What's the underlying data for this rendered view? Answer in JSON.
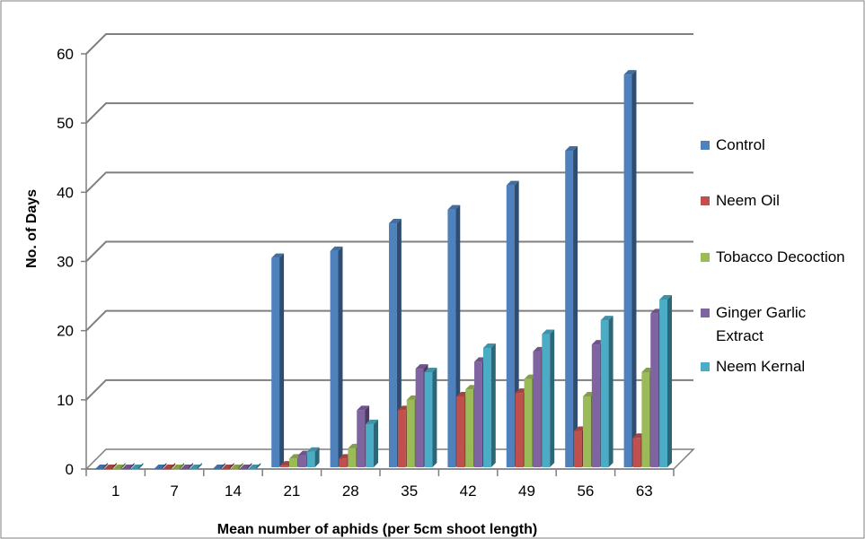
{
  "chart_data": {
    "type": "bar",
    "title": "",
    "xlabel": "Mean number of aphids (per 5cm shoot length)",
    "ylabel": "No. of Days",
    "ylim": [
      0,
      60
    ],
    "yticks": [
      0,
      10,
      20,
      30,
      40,
      50,
      60
    ],
    "grid": true,
    "three_d": true,
    "legend_position": "right",
    "categories": [
      "1",
      "7",
      "14",
      "21",
      "28",
      "35",
      "42",
      "49",
      "56",
      "63"
    ],
    "series": [
      {
        "name": "Control",
        "color": "#4F81BD",
        "values": [
          0,
          0,
          0,
          30.5,
          31.5,
          35.5,
          37.5,
          41,
          46,
          57
        ]
      },
      {
        "name": "Neem Oil",
        "color": "#C0504D",
        "values": [
          0,
          0,
          0,
          0.5,
          1.5,
          8.5,
          10.5,
          11,
          5.5,
          4.5
        ]
      },
      {
        "name": "Tobacco Decoction",
        "color": "#9BBB59",
        "values": [
          0,
          0,
          0,
          1.5,
          3,
          10,
          11.5,
          13,
          10.5,
          14
        ]
      },
      {
        "name": "Ginger Garlic Extract",
        "color": "#8064A2",
        "values": [
          0,
          0,
          0,
          2,
          8.5,
          14.5,
          15.5,
          17,
          18,
          22.5
        ]
      },
      {
        "name": "Neem Kernal",
        "color": "#4BACC6",
        "values": [
          0,
          0,
          0,
          2.5,
          6.5,
          14,
          17.5,
          19.5,
          21.5,
          24.5
        ]
      }
    ]
  }
}
